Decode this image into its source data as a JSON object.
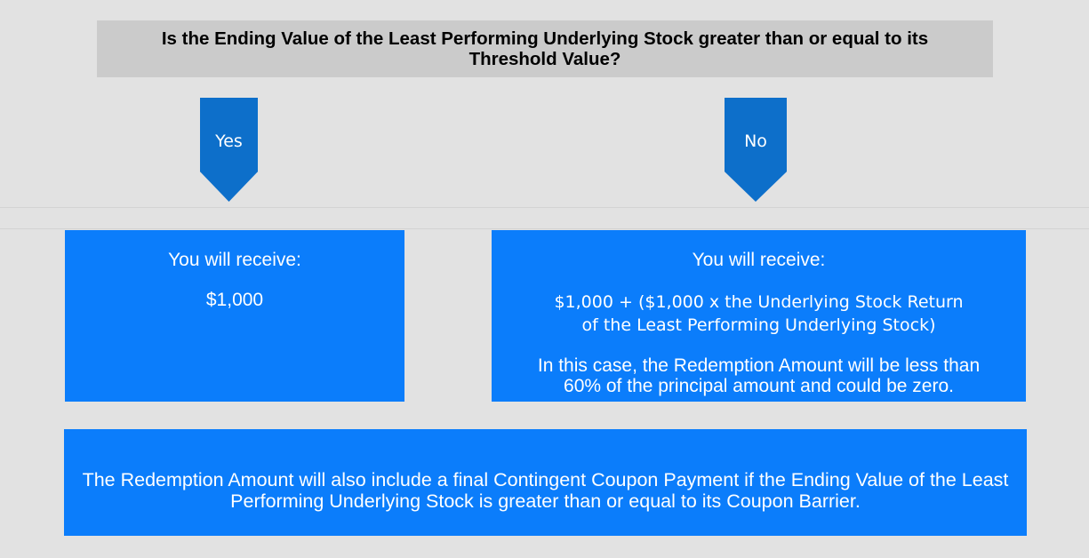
{
  "question": {
    "text": "Is the Ending Value of the Least Performing Underlying Stock greater than or equal to its Threshold Value?"
  },
  "branches": {
    "yes": {
      "label": "Yes",
      "receive_heading": "You will receive:",
      "amount": "$1,000"
    },
    "no": {
      "label": "No",
      "receive_heading": "You will receive:",
      "formula": "$1,000 + ($1,000 x the Underlying Stock Return of the Least Performing Underlying Stock)",
      "note": "In this case, the Redemption Amount will be less than 60% of the principal amount and could be zero."
    }
  },
  "footer": {
    "text": "The Redemption Amount will also include a final Contingent Coupon Payment if the Ending Value of the Least Performing Underlying Stock is greater than or equal to its Coupon Barrier."
  },
  "colors": {
    "background": "#e2e2e2",
    "question_box": "#cbcbcb",
    "arrow": "#0d6fca",
    "outcome_box": "#0b7dfb",
    "text_on_blue": "#ffffff"
  }
}
